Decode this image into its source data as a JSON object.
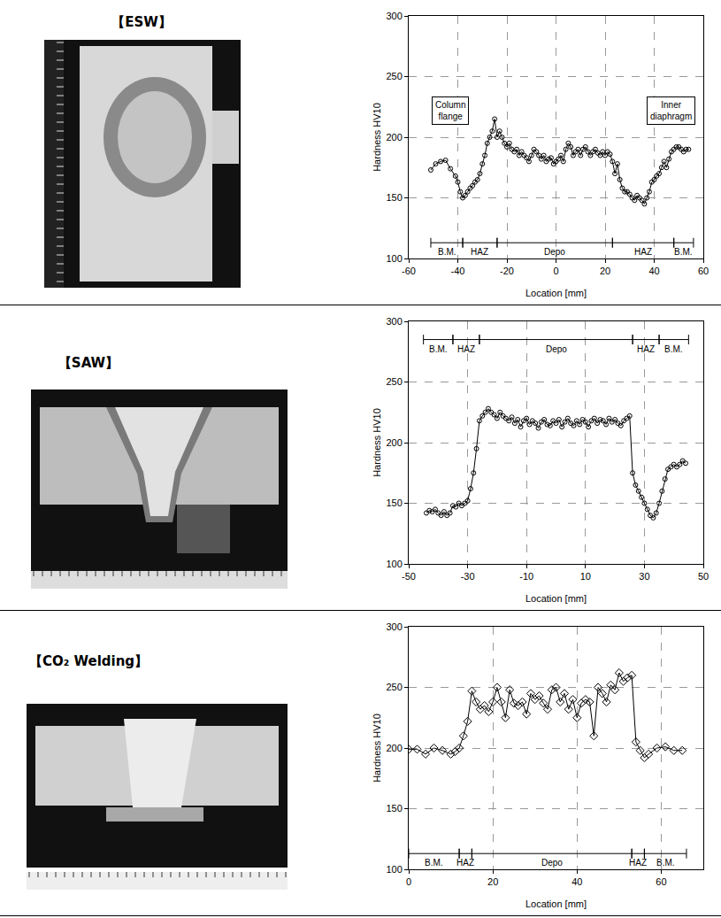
{
  "chart_data": [
    {
      "type": "line",
      "title": "【ESW】",
      "x_label": "Location [mm]",
      "y_label": "Hardness HV10",
      "color": "#000000",
      "marker": "circle",
      "grid": true,
      "xlim": [
        -60,
        60
      ],
      "xticks": [
        -60,
        -40,
        -20,
        0,
        20,
        40,
        60
      ],
      "ylim": [
        100,
        300
      ],
      "yticks": [
        100,
        150,
        200,
        250,
        300
      ],
      "x": [
        -51,
        -49,
        -47,
        -45,
        -43,
        -41,
        -40,
        -39,
        -38,
        -37,
        -36,
        -35,
        -34,
        -33,
        -32,
        -31,
        -30,
        -29,
        -28,
        -27,
        -26,
        -25,
        -24,
        -23,
        -22,
        -21,
        -20,
        -19,
        -18,
        -17,
        -16,
        -15,
        -14,
        -13,
        -12,
        -11,
        -10,
        -9,
        -8,
        -7,
        -6,
        -5,
        -4,
        -3,
        -2,
        -1,
        0,
        1,
        2,
        3,
        4,
        5,
        6,
        7,
        8,
        9,
        10,
        11,
        12,
        13,
        14,
        15,
        16,
        17,
        18,
        19,
        20,
        21,
        22,
        23,
        24,
        25,
        26,
        27,
        28,
        29,
        30,
        31,
        32,
        33,
        34,
        35,
        36,
        37,
        38,
        39,
        40,
        41,
        42,
        43,
        44,
        45,
        46,
        47,
        48,
        49,
        50,
        51,
        52,
        53,
        54
      ],
      "values": [
        173,
        178,
        180,
        181,
        174,
        168,
        163,
        155,
        150,
        152,
        155,
        158,
        160,
        163,
        165,
        170,
        178,
        185,
        195,
        200,
        205,
        215,
        200,
        205,
        200,
        195,
        192,
        195,
        190,
        188,
        190,
        185,
        188,
        185,
        183,
        180,
        185,
        190,
        188,
        185,
        182,
        185,
        180,
        182,
        183,
        178,
        180,
        182,
        185,
        180,
        190,
        195,
        192,
        185,
        188,
        190,
        185,
        190,
        192,
        188,
        185,
        188,
        190,
        187,
        185,
        188,
        185,
        188,
        186,
        180,
        170,
        178,
        165,
        158,
        155,
        155,
        153,
        150,
        148,
        152,
        150,
        148,
        145,
        150,
        155,
        163,
        165,
        168,
        170,
        175,
        180,
        175,
        182,
        188,
        190,
        192,
        192,
        190,
        188,
        190,
        190
      ],
      "zones_position": "bottom",
      "zones": [
        {
          "label": "B.M.",
          "from": -51,
          "to": -38
        },
        {
          "label": "HAZ",
          "from": -38,
          "to": -24
        },
        {
          "label": "Depo",
          "from": -24,
          "to": 23
        },
        {
          "label": "HAZ",
          "from": 23,
          "to": 48
        },
        {
          "label": "B.M.",
          "from": 48,
          "to": 56
        }
      ],
      "annotations": [
        {
          "text": "Column flange",
          "x": -43,
          "y": 222
        },
        {
          "text": "Inner diaphragm",
          "x": 47,
          "y": 222
        }
      ]
    },
    {
      "type": "line",
      "title": "【SAW】",
      "x_label": "Location [mm]",
      "y_label": "Hardness HV10",
      "color": "#000000",
      "marker": "circle",
      "grid": true,
      "xlim": [
        -50,
        50
      ],
      "xticks": [
        -50,
        -30,
        -10,
        10,
        30,
        50
      ],
      "ylim": [
        100,
        300
      ],
      "yticks": [
        100,
        150,
        200,
        250,
        300
      ],
      "x": [
        -44,
        -43,
        -42,
        -41,
        -40,
        -39,
        -38,
        -37,
        -36,
        -35,
        -34,
        -33,
        -32,
        -31,
        -30,
        -29,
        -28,
        -27,
        -26,
        -25,
        -24,
        -23,
        -22,
        -21,
        -20,
        -19,
        -18,
        -17,
        -16,
        -15,
        -14,
        -13,
        -12,
        -11,
        -10,
        -9,
        -8,
        -7,
        -6,
        -5,
        -4,
        -3,
        -2,
        -1,
        0,
        1,
        2,
        3,
        4,
        5,
        6,
        7,
        8,
        9,
        10,
        11,
        12,
        13,
        14,
        15,
        16,
        17,
        18,
        19,
        20,
        21,
        22,
        23,
        24,
        25,
        26,
        27,
        28,
        29,
        30,
        31,
        32,
        33,
        34,
        35,
        36,
        37,
        38,
        39,
        40,
        41,
        42,
        43,
        44
      ],
      "values": [
        142,
        144,
        143,
        145,
        142,
        140,
        143,
        140,
        142,
        148,
        147,
        150,
        148,
        150,
        152,
        162,
        175,
        195,
        218,
        222,
        225,
        228,
        225,
        223,
        220,
        225,
        222,
        220,
        218,
        221,
        216,
        219,
        213,
        218,
        220,
        215,
        218,
        216,
        212,
        217,
        219,
        215,
        214,
        218,
        216,
        219,
        213,
        217,
        220,
        216,
        214,
        218,
        215,
        219,
        217,
        213,
        218,
        220,
        216,
        219,
        218,
        215,
        220,
        217,
        219,
        216,
        214,
        218,
        220,
        222,
        175,
        165,
        160,
        155,
        150,
        145,
        140,
        138,
        142,
        150,
        160,
        170,
        178,
        180,
        182,
        180,
        182,
        185,
        183
      ],
      "zones_position": "top",
      "zones": [
        {
          "label": "B.M.",
          "from": -45,
          "to": -35
        },
        {
          "label": "HAZ",
          "from": -35,
          "to": -26
        },
        {
          "label": "Depo",
          "from": -26,
          "to": 26
        },
        {
          "label": "HAZ",
          "from": 26,
          "to": 35
        },
        {
          "label": "B.M.",
          "from": 35,
          "to": 45
        }
      ],
      "annotations": []
    },
    {
      "type": "line",
      "title": "【CO₂ Welding】",
      "x_label": "Location [mm]",
      "y_label": "Hardness HV10",
      "color": "#000000",
      "marker": "diamond",
      "grid": true,
      "xlim": [
        0,
        70
      ],
      "xticks": [
        0,
        20,
        40,
        60
      ],
      "ylim": [
        100,
        300
      ],
      "yticks": [
        100,
        150,
        200,
        250,
        300
      ],
      "x": [
        0,
        2,
        4,
        6,
        8,
        10,
        11,
        12,
        13,
        14,
        15,
        16,
        17,
        18,
        19,
        20,
        21,
        22,
        23,
        24,
        25,
        26,
        27,
        28,
        29,
        30,
        31,
        32,
        33,
        34,
        35,
        36,
        37,
        38,
        39,
        40,
        41,
        42,
        43,
        44,
        45,
        46,
        47,
        48,
        49,
        50,
        51,
        52,
        53,
        54,
        55,
        56,
        57,
        59,
        61,
        63,
        65
      ],
      "values": [
        199,
        199,
        195,
        200,
        198,
        195,
        197,
        200,
        210,
        222,
        247,
        238,
        232,
        235,
        230,
        238,
        250,
        238,
        225,
        248,
        237,
        235,
        238,
        228,
        245,
        240,
        243,
        237,
        232,
        248,
        250,
        238,
        245,
        232,
        240,
        225,
        237,
        240,
        238,
        210,
        250,
        245,
        238,
        252,
        248,
        262,
        255,
        258,
        260,
        205,
        198,
        192,
        195,
        200,
        201,
        198,
        198
      ],
      "zones_position": "bottom",
      "zones": [
        {
          "label": "B.M.",
          "from": 0,
          "to": 12
        },
        {
          "label": "HAZ",
          "from": 12,
          "to": 15
        },
        {
          "label": "Depo",
          "from": 15,
          "to": 53
        },
        {
          "label": "HAZ",
          "from": 53,
          "to": 56
        },
        {
          "label": "B.M.",
          "from": 56,
          "to": 66
        }
      ],
      "annotations": []
    }
  ]
}
